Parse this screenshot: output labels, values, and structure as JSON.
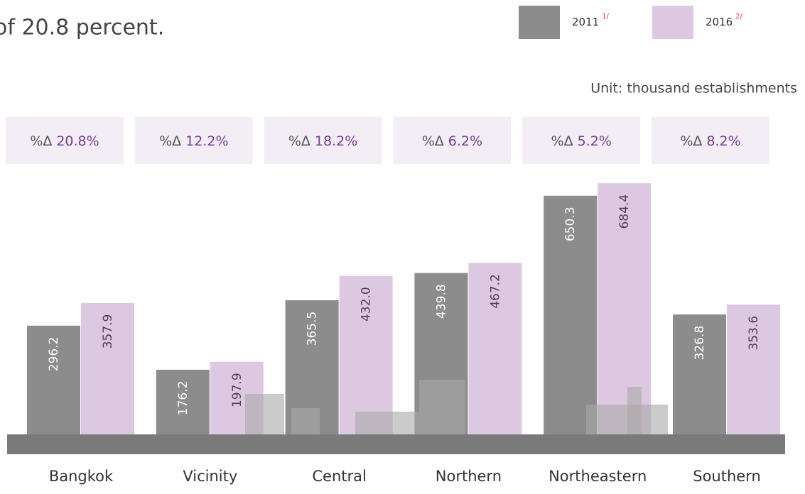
{
  "chart_data": {
    "type": "bar",
    "title": "of 20.8 percent.",
    "unit": "Unit: thousand establishments",
    "categories": [
      "Bangkok",
      "Vicinity",
      "Central",
      "Northern",
      "Northeastern",
      "Southern"
    ],
    "series": [
      {
        "name": "2011",
        "note": "1/",
        "color": "#8c8c8c",
        "values": [
          296.2,
          176.2,
          365.5,
          439.8,
          650.3,
          326.8
        ]
      },
      {
        "name": "2016",
        "note": "2/",
        "color": "#dcc8e0",
        "values": [
          357.9,
          197.9,
          432.0,
          467.2,
          684.4,
          353.6
        ],
        "value_labels": [
          "357.9",
          "197.9",
          "432.0",
          "467.2",
          "684.4",
          "353.6"
        ]
      }
    ],
    "change_prefix": "%Δ",
    "changes": [
      20.8,
      12.2,
      18.2,
      6.2,
      5.2,
      8.2
    ],
    "change_labels": [
      "20.8%",
      "12.2%",
      "18.2%",
      "6.2%",
      "5.2%",
      "8.2%"
    ]
  }
}
